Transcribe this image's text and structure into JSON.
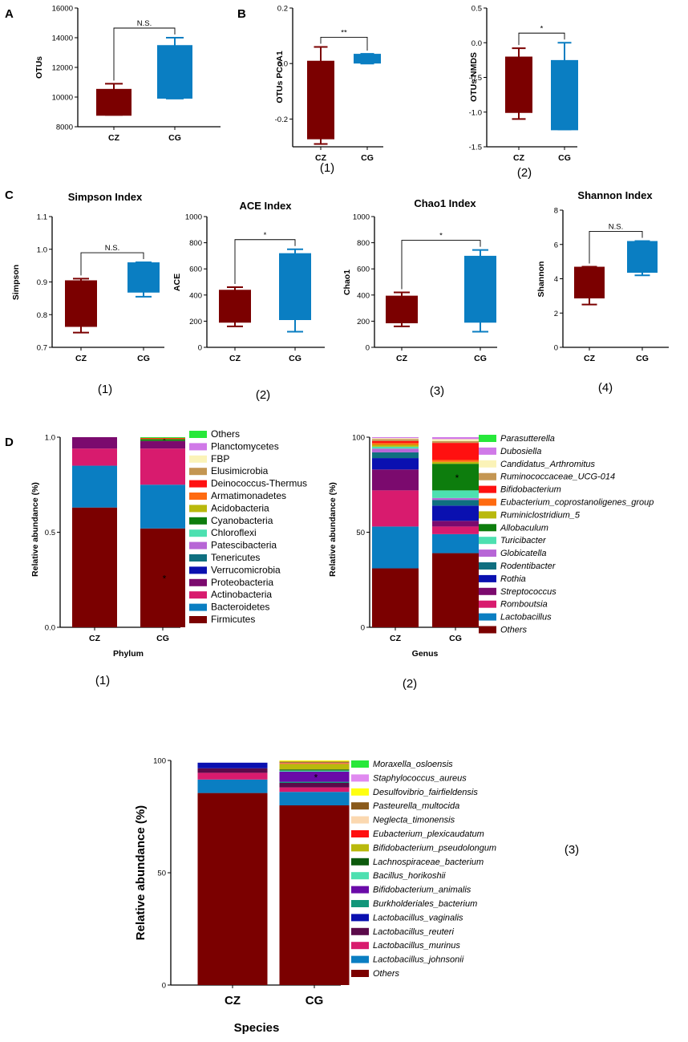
{
  "colors": {
    "cz": "#7b0000",
    "cg": "#0a7ec2"
  },
  "panel_labels": {
    "a": "A",
    "b": "B",
    "c": "C",
    "d": "D"
  },
  "chart_data": [
    {
      "id": "A",
      "type": "box",
      "title": "",
      "ylabel": "OTUs",
      "xlabel": "",
      "ylim": [
        8000,
        16000
      ],
      "yticks": [
        "8000",
        "10000",
        "12000",
        "14000",
        "16000"
      ],
      "categories": [
        "CZ",
        "CG"
      ],
      "boxes": [
        {
          "group": "CZ",
          "min": 8800,
          "q1": 8800,
          "median": 8800,
          "q3": 10550,
          "max": 10900
        },
        {
          "group": "CG",
          "min": 9900,
          "q1": 9900,
          "median": 9950,
          "q3": 13500,
          "max": 14000
        }
      ],
      "significance": "N.S.",
      "sublabel": ""
    },
    {
      "id": "B1",
      "type": "box",
      "title": "",
      "ylabel": "OTUs PCoA1",
      "xlabel": "",
      "ylim": [
        -0.3,
        0.2
      ],
      "yticks": [
        "-0.2",
        "0.0",
        "0.2"
      ],
      "categories": [
        "CZ",
        "CG"
      ],
      "boxes": [
        {
          "group": "CZ",
          "min": -0.29,
          "q1": -0.27,
          "median": -0.27,
          "q3": 0.01,
          "max": 0.06
        },
        {
          "group": "CG",
          "min": 0.0,
          "q1": 0.0,
          "median": 0.02,
          "q3": 0.035,
          "max": 0.035
        }
      ],
      "significance": "**",
      "sublabel": "(1)"
    },
    {
      "id": "B2",
      "type": "box",
      "title": "",
      "ylabel": "OTUs NMDS",
      "xlabel": "",
      "ylim": [
        -1.5,
        0.5
      ],
      "yticks": [
        "-1.5",
        "-1.0",
        "-0.5",
        "0.0",
        "0.5"
      ],
      "categories": [
        "CZ",
        "CG"
      ],
      "boxes": [
        {
          "group": "CZ",
          "min": -1.1,
          "q1": -1.0,
          "median": -1.0,
          "q3": -0.2,
          "max": -0.08
        },
        {
          "group": "CG",
          "min": -1.25,
          "q1": -1.25,
          "median": -1.25,
          "q3": -0.25,
          "max": 0.0
        }
      ],
      "significance": "*",
      "sublabel": "(2)"
    },
    {
      "id": "C1",
      "type": "box",
      "title": "Simpson Index",
      "ylabel": "Simpson",
      "xlabel": "",
      "ylim": [
        0.7,
        1.1
      ],
      "yticks": [
        "0.7",
        "0.8",
        "0.9",
        "1.0",
        "1.1"
      ],
      "categories": [
        "CZ",
        "CG"
      ],
      "boxes": [
        {
          "group": "CZ",
          "min": 0.745,
          "q1": 0.765,
          "median": 0.765,
          "q3": 0.905,
          "max": 0.91
        },
        {
          "group": "CG",
          "min": 0.855,
          "q1": 0.87,
          "median": 0.87,
          "q3": 0.96,
          "max": 0.96
        }
      ],
      "significance": "N.S.",
      "sublabel": "(1)"
    },
    {
      "id": "C2",
      "type": "box",
      "title": "ACE Index",
      "ylabel": "ACE",
      "xlabel": "",
      "ylim": [
        0,
        1000
      ],
      "yticks": [
        "0",
        "200",
        "400",
        "600",
        "800",
        "1000"
      ],
      "categories": [
        "CZ",
        "CG"
      ],
      "boxes": [
        {
          "group": "CZ",
          "min": 160,
          "q1": 195,
          "median": 195,
          "q3": 440,
          "max": 460
        },
        {
          "group": "CG",
          "min": 120,
          "q1": 215,
          "median": 215,
          "q3": 720,
          "max": 750
        }
      ],
      "significance": "*",
      "sublabel": "(2)"
    },
    {
      "id": "C3",
      "type": "box",
      "title": "Chao1 Index",
      "ylabel": "Chao1",
      "xlabel": "",
      "ylim": [
        0,
        1000
      ],
      "yticks": [
        "0",
        "200",
        "400",
        "600",
        "800",
        "1000"
      ],
      "categories": [
        "CZ",
        "CG"
      ],
      "boxes": [
        {
          "group": "CZ",
          "min": 160,
          "q1": 190,
          "median": 190,
          "q3": 395,
          "max": 420
        },
        {
          "group": "CG",
          "min": 120,
          "q1": 195,
          "median": 195,
          "q3": 700,
          "max": 745
        }
      ],
      "significance": "*",
      "sublabel": "(3)"
    },
    {
      "id": "C4",
      "type": "box",
      "title": "Shannon Index",
      "ylabel": "Shannon",
      "xlabel": "",
      "ylim": [
        0,
        8
      ],
      "yticks": [
        "0",
        "2",
        "4",
        "6",
        "8"
      ],
      "categories": [
        "CZ",
        "CG"
      ],
      "boxes": [
        {
          "group": "CZ",
          "min": 2.5,
          "q1": 2.9,
          "median": 2.9,
          "q3": 4.7,
          "max": 4.7
        },
        {
          "group": "CG",
          "min": 4.2,
          "q1": 4.4,
          "median": 4.4,
          "q3": 6.2,
          "max": 6.2
        }
      ],
      "significance": "N.S.",
      "sublabel": "(4)"
    },
    {
      "id": "D1",
      "type": "stacked-bar",
      "title": "",
      "ylabel": "Relative abundance (%)",
      "xlabel": "Phylum",
      "ylim": [
        0,
        1
      ],
      "yticks": [
        "0.0",
        "0.5",
        "1.0"
      ],
      "categories": [
        "CZ",
        "CG"
      ],
      "series": [
        {
          "name": "Firmicutes",
          "color": "#7b0000",
          "values": [
            0.63,
            0.52
          ],
          "star": [
            false,
            true
          ]
        },
        {
          "name": "Bacteroidetes",
          "color": "#0a7ec2",
          "values": [
            0.22,
            0.23
          ],
          "star": [
            false,
            false
          ]
        },
        {
          "name": "Actinobacteria",
          "color": "#d81b6e",
          "values": [
            0.09,
            0.19
          ],
          "star": [
            false,
            false
          ]
        },
        {
          "name": "Proteobacteria",
          "color": "#7b0a6e",
          "values": [
            0.06,
            0.04
          ],
          "star": [
            false,
            false
          ]
        },
        {
          "name": "Verrucomicrobia",
          "color": "#0a10b0",
          "values": [
            0.0,
            0.0
          ],
          "star": [
            false,
            false
          ]
        },
        {
          "name": "Tenericutes",
          "color": "#0f6f80",
          "values": [
            0.0,
            0.0
          ],
          "star": [
            false,
            false
          ]
        },
        {
          "name": "Patescibacteria",
          "color": "#b766d6",
          "values": [
            0.0,
            0.0
          ],
          "star": [
            false,
            false
          ]
        },
        {
          "name": "Chloroflexi",
          "color": "#4de0b0",
          "values": [
            0.0,
            0.0
          ],
          "star": [
            false,
            false
          ]
        },
        {
          "name": "Cyanobacteria",
          "color": "#0d7d0d",
          "values": [
            0.0,
            0.01
          ],
          "star": [
            false,
            true
          ]
        },
        {
          "name": "Acidobacteria",
          "color": "#b9b90c",
          "values": [
            0.0,
            0.0
          ],
          "star": [
            false,
            false
          ]
        },
        {
          "name": "Armatimonadetes",
          "color": "#ff6a10",
          "values": [
            0.0,
            0.004
          ],
          "star": [
            false,
            false
          ]
        },
        {
          "name": "Deinococcus-Thermus",
          "color": "#ff1010",
          "values": [
            0.0,
            0.002
          ],
          "star": [
            false,
            false
          ]
        },
        {
          "name": "Elusimicrobia",
          "color": "#c49652",
          "values": [
            0.0,
            0.0
          ],
          "star": [
            false,
            false
          ]
        },
        {
          "name": "FBP",
          "color": "#fbf3b8",
          "values": [
            0.0,
            0.0
          ],
          "star": [
            false,
            false
          ]
        },
        {
          "name": "Planctomycetes",
          "color": "#d079e8",
          "values": [
            0.0,
            0.0
          ],
          "star": [
            false,
            false
          ]
        },
        {
          "name": "Others",
          "color": "#27e83a",
          "values": [
            0.0,
            0.004
          ],
          "star": [
            false,
            false
          ]
        }
      ],
      "legend_italic": false,
      "sublabel": "(1)"
    },
    {
      "id": "D2",
      "type": "stacked-bar",
      "title": "",
      "ylabel": "Relative abundance (%)",
      "xlabel": "Genus",
      "ylim": [
        0,
        100
      ],
      "yticks": [
        "0",
        "50",
        "100"
      ],
      "categories": [
        "CZ",
        "CG"
      ],
      "series": [
        {
          "name": "Others",
          "color": "#7b0000",
          "values": [
            31,
            39
          ],
          "star": [
            false,
            false
          ]
        },
        {
          "name": "Lactobacillus",
          "color": "#0a7ec2",
          "values": [
            22,
            10
          ],
          "star": [
            false,
            false
          ]
        },
        {
          "name": "Romboutsia",
          "color": "#d81b6e",
          "values": [
            19,
            4
          ],
          "star": [
            false,
            false
          ]
        },
        {
          "name": "Streptococcus",
          "color": "#7b0a6e",
          "values": [
            11,
            3
          ],
          "star": [
            false,
            false
          ]
        },
        {
          "name": "Rothia",
          "color": "#0a10b0",
          "values": [
            6,
            8
          ],
          "star": [
            false,
            false
          ]
        },
        {
          "name": "Rodentibacter",
          "color": "#0f6f80",
          "values": [
            3,
            3
          ],
          "star": [
            false,
            false
          ]
        },
        {
          "name": "Globicatella",
          "color": "#b766d6",
          "values": [
            2,
            1
          ],
          "star": [
            false,
            false
          ]
        },
        {
          "name": "Turicibacter",
          "color": "#4de0b0",
          "values": [
            1,
            4
          ],
          "star": [
            false,
            false
          ]
        },
        {
          "name": "Allobaculum",
          "color": "#0d7d0d",
          "values": [
            0,
            14
          ],
          "star": [
            false,
            true
          ]
        },
        {
          "name": "Ruminiclostridium_5",
          "color": "#b9b90c",
          "values": [
            1,
            1
          ],
          "star": [
            false,
            false
          ]
        },
        {
          "name": "Eubacterium_coprostanoligenes_group",
          "color": "#ff6a10",
          "values": [
            1,
            1
          ],
          "star": [
            false,
            false
          ]
        },
        {
          "name": "Bifidobacterium",
          "color": "#ff1010",
          "values": [
            1,
            9
          ],
          "star": [
            false,
            false
          ]
        },
        {
          "name": "Ruminococcaceae_UCG-014",
          "color": "#c49652",
          "values": [
            1,
            1
          ],
          "star": [
            false,
            false
          ]
        },
        {
          "name": "Candidatus_Arthromitus",
          "color": "#fbf3b8",
          "values": [
            0.5,
            1
          ],
          "star": [
            false,
            false
          ]
        },
        {
          "name": "Dubosiella",
          "color": "#d079e8",
          "values": [
            0.5,
            1
          ],
          "star": [
            false,
            false
          ]
        },
        {
          "name": "Parasutterella",
          "color": "#27e83a",
          "values": [
            0,
            0
          ],
          "star": [
            false,
            false
          ]
        }
      ],
      "legend_italic": true,
      "sublabel": "(2)"
    },
    {
      "id": "D3",
      "type": "stacked-bar",
      "title": "",
      "ylabel": "Relative abundance (%)",
      "xlabel": "Species",
      "ylim": [
        0,
        100
      ],
      "yticks": [
        "0",
        "50",
        "100"
      ],
      "categories": [
        "CZ",
        "CG"
      ],
      "series": [
        {
          "name": "Others",
          "color": "#7b0000",
          "values": [
            85.5,
            80
          ],
          "star": [
            false,
            false
          ]
        },
        {
          "name": "Lactobacillus_johnsonii",
          "color": "#0a7ec2",
          "values": [
            6,
            6
          ],
          "star": [
            false,
            false
          ]
        },
        {
          "name": "Lactobacillus_murinus",
          "color": "#d81b6e",
          "values": [
            3,
            2
          ],
          "star": [
            false,
            false
          ]
        },
        {
          "name": "Lactobacillus_reuteri",
          "color": "#5a0a4a",
          "values": [
            2,
            2
          ],
          "star": [
            false,
            false
          ]
        },
        {
          "name": "Lactobacillus_vaginalis",
          "color": "#0a10b0",
          "values": [
            2.5,
            0
          ],
          "star": [
            false,
            false
          ]
        },
        {
          "name": "Burkholderiales_bacterium",
          "color": "#12967a",
          "values": [
            0,
            0.5
          ],
          "star": [
            false,
            false
          ]
        },
        {
          "name": "Bifidobacterium_animalis",
          "color": "#6a0aa8",
          "values": [
            0,
            4.5
          ],
          "star": [
            false,
            true
          ]
        },
        {
          "name": "Bacillus_horikoshii",
          "color": "#4de0b0",
          "values": [
            0,
            0.5
          ],
          "star": [
            false,
            false
          ]
        },
        {
          "name": "Lachnospiraceae_bacterium",
          "color": "#0d5a0d",
          "values": [
            0,
            0.5
          ],
          "star": [
            false,
            false
          ]
        },
        {
          "name": "Bifidobacterium_pseudolongum",
          "color": "#b9b90c",
          "values": [
            0,
            2.5
          ],
          "star": [
            false,
            false
          ]
        },
        {
          "name": "Eubacterium_plexicaudatum",
          "color": "#ff1010",
          "values": [
            0,
            0.3
          ],
          "star": [
            false,
            false
          ]
        },
        {
          "name": "Neglecta_timonensis",
          "color": "#fbd8b0",
          "values": [
            0,
            0.2
          ],
          "star": [
            false,
            false
          ]
        },
        {
          "name": "Pasteurella_multocida",
          "color": "#8a5a1a",
          "values": [
            0,
            0.5
          ],
          "star": [
            false,
            false
          ]
        },
        {
          "name": "Desulfovibrio_fairfieldensis",
          "color": "#ffff10",
          "values": [
            0,
            0.5
          ],
          "star": [
            false,
            false
          ]
        },
        {
          "name": "Staphylococcus_aureus",
          "color": "#e08af0",
          "values": [
            0,
            0
          ],
          "star": [
            false,
            false
          ]
        },
        {
          "name": "Moraxella_osloensis",
          "color": "#27e83a",
          "values": [
            0,
            0
          ],
          "star": [
            false,
            false
          ]
        }
      ],
      "legend_italic": true,
      "sublabel": "(3)"
    }
  ]
}
